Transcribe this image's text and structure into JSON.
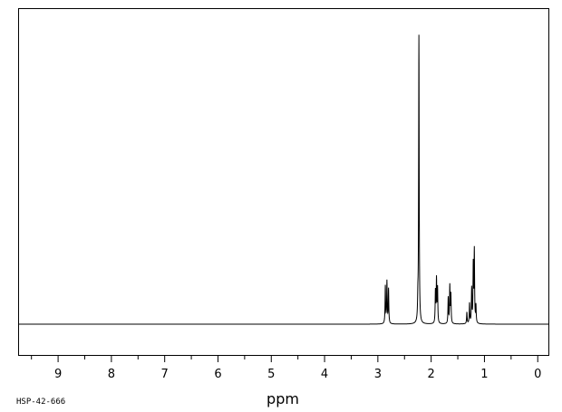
{
  "chart_data": {
    "type": "line",
    "title": "",
    "xlabel": "ppm",
    "ylabel": "",
    "xlim": [
      9.75,
      -0.2
    ],
    "ylim": [
      -0.1,
      1.03
    ],
    "x_reversed": true,
    "grid": false,
    "legend": "none",
    "x_ticks": [
      9,
      8,
      7,
      6,
      5,
      4,
      3,
      2,
      1,
      0
    ],
    "x_tick_labels": [
      "9",
      "8",
      "7",
      "6",
      "5",
      "4",
      "3",
      "2",
      "1",
      "0"
    ],
    "series": [
      {
        "line_color": "#000000",
        "peaks": [
          {
            "ppm": 2.86,
            "height": 0.13
          },
          {
            "ppm": 2.83,
            "height": 0.145
          },
          {
            "ppm": 2.8,
            "height": 0.12
          },
          {
            "ppm": 2.25,
            "height": 0.06
          },
          {
            "ppm": 2.23,
            "height": 1.0
          },
          {
            "ppm": 1.92,
            "height": 0.11
          },
          {
            "ppm": 1.9,
            "height": 0.15
          },
          {
            "ppm": 1.88,
            "height": 0.12
          },
          {
            "ppm": 1.68,
            "height": 0.09
          },
          {
            "ppm": 1.65,
            "height": 0.13
          },
          {
            "ppm": 1.63,
            "height": 0.1
          },
          {
            "ppm": 1.33,
            "height": 0.04
          },
          {
            "ppm": 1.28,
            "height": 0.07
          },
          {
            "ppm": 1.24,
            "height": 0.12
          },
          {
            "ppm": 1.21,
            "height": 0.2
          },
          {
            "ppm": 1.19,
            "height": 0.25
          },
          {
            "ppm": 1.16,
            "height": 0.06
          }
        ]
      }
    ]
  },
  "footer": {
    "sample_code": "HSP-42-666"
  }
}
